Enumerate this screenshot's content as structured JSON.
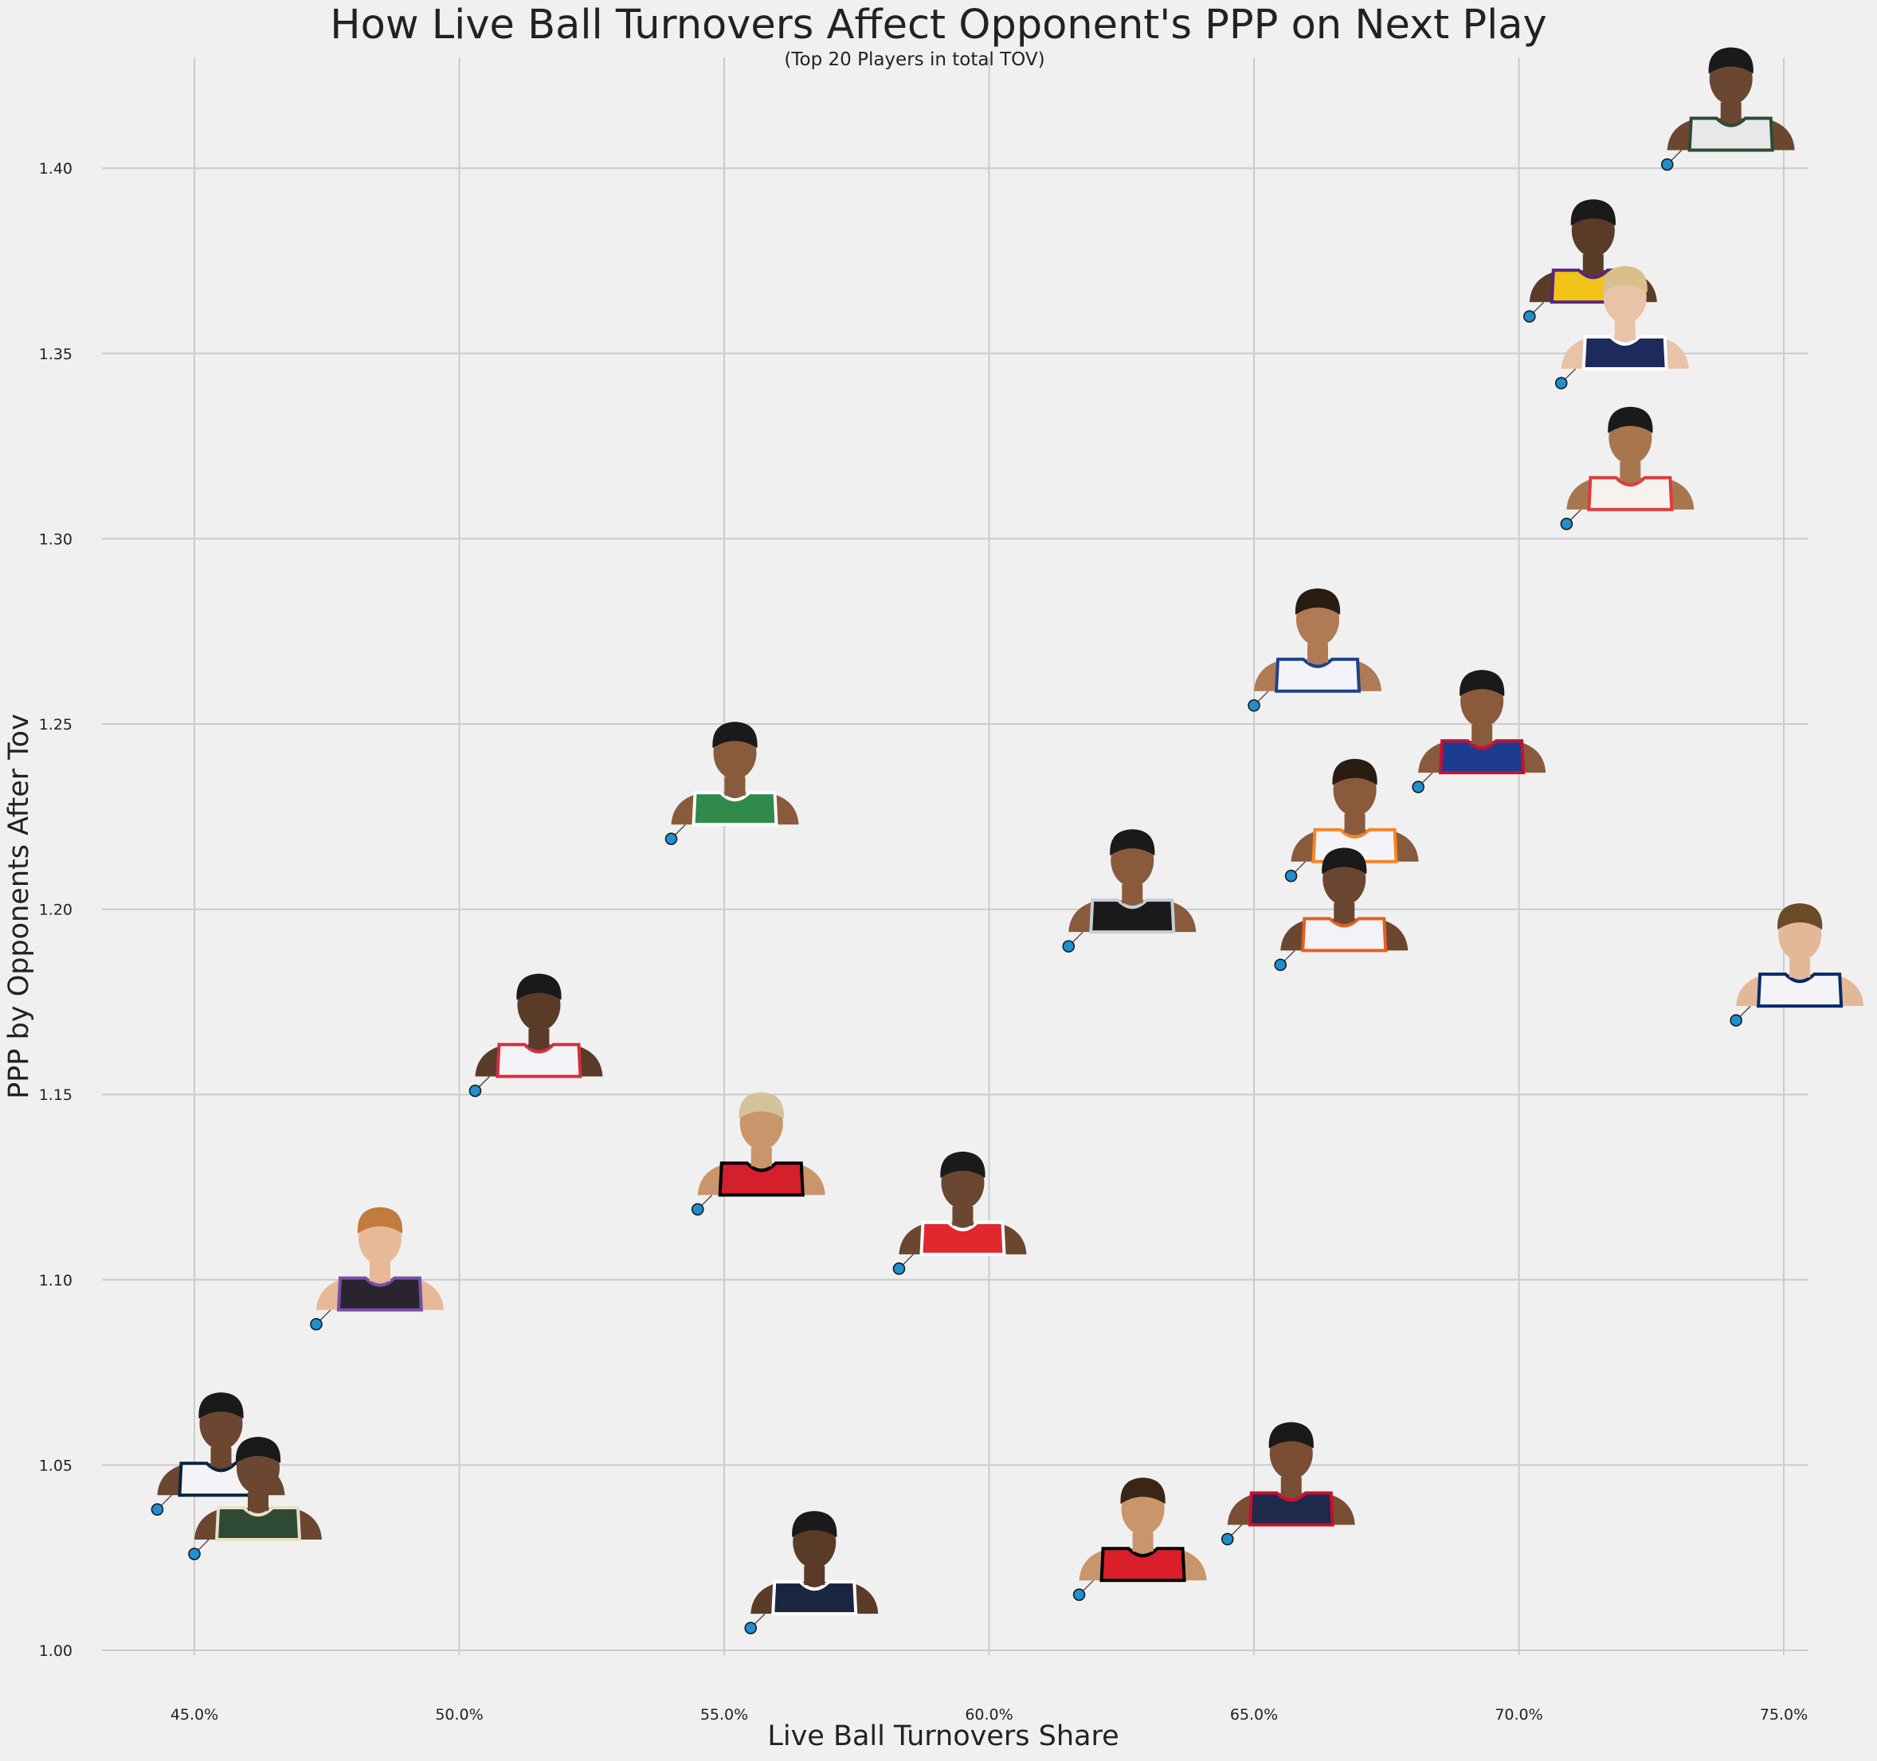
{
  "chart_data": {
    "type": "scatter",
    "title": "How Live Ball Turnovers Affect Opponent's PPP on Next Play",
    "subtitle": "(Top 20 Players in total TOV)",
    "xlabel": "Live Ball Turnovers Share",
    "ylabel": "PPP by Opponents After Tov",
    "xlim": [
      0.43,
      0.755
    ],
    "ylim": [
      0.988,
      1.42
    ],
    "xticks": [
      0.45,
      0.5,
      0.55,
      0.6,
      0.65,
      0.7,
      0.75
    ],
    "xtick_labels": [
      "45.0%",
      "50.0%",
      "55.0%",
      "60.0%",
      "65.0%",
      "70.0%",
      "75.0%"
    ],
    "yticks": [
      1.0,
      1.05,
      1.1,
      1.15,
      1.2,
      1.25,
      1.3,
      1.35,
      1.4
    ],
    "ytick_labels": [
      "1.00",
      "1.05",
      "1.10",
      "1.15",
      "1.20",
      "1.25",
      "1.30",
      "1.35",
      "1.40"
    ],
    "grid": true,
    "marker_color": "#1f8fcf",
    "points": [
      {
        "x": 0.728,
        "y": 1.401,
        "jersey": "#e8e8e8",
        "trim": "#2e4a35",
        "skin": "#6b4630",
        "hair": "#1a1a1a"
      },
      {
        "x": 0.702,
        "y": 1.36,
        "jersey": "#f2c418",
        "trim": "#552583",
        "skin": "#5a3b28",
        "hair": "#1a1a1a"
      },
      {
        "x": 0.708,
        "y": 1.342,
        "jersey": "#1d2a5c",
        "trim": "#ffffff",
        "skin": "#e9c3a8",
        "hair": "#d9c08a"
      },
      {
        "x": 0.709,
        "y": 1.304,
        "jersey": "#f7f2ee",
        "trim": "#e03a3e",
        "skin": "#a8764e",
        "hair": "#1a1a1a"
      },
      {
        "x": 0.65,
        "y": 1.255,
        "jersey": "#f4f4f8",
        "trim": "#1d428a",
        "skin": "#b07a55",
        "hair": "#2a1c12"
      },
      {
        "x": 0.681,
        "y": 1.233,
        "jersey": "#1d3c8f",
        "trim": "#c8102e",
        "skin": "#8a5a3c",
        "hair": "#1a1a1a"
      },
      {
        "x": 0.54,
        "y": 1.219,
        "jersey": "#2f8a4c",
        "trim": "#ffffff",
        "skin": "#8a5a3c",
        "hair": "#1a1a1a"
      },
      {
        "x": 0.657,
        "y": 1.209,
        "jersey": "#f4f4f8",
        "trim": "#f58426",
        "skin": "#8a5a3c",
        "hair": "#2a1c12"
      },
      {
        "x": 0.615,
        "y": 1.19,
        "jersey": "#1a1a1a",
        "trim": "#c4ced4",
        "skin": "#8a5a3c",
        "hair": "#1a1a1a"
      },
      {
        "x": 0.655,
        "y": 1.185,
        "jersey": "#f4f2f8",
        "trim": "#e56020",
        "skin": "#6b4630",
        "hair": "#1a1a1a"
      },
      {
        "x": 0.741,
        "y": 1.17,
        "jersey": "#f4f4f8",
        "trim": "#0b2a66",
        "skin": "#e2b899",
        "hair": "#6b4a2a"
      },
      {
        "x": 0.503,
        "y": 1.151,
        "jersey": "#f4f4f8",
        "trim": "#d03040",
        "skin": "#5a3b28",
        "hair": "#1a1a1a"
      },
      {
        "x": 0.545,
        "y": 1.119,
        "jersey": "#d41f2c",
        "trim": "#000000",
        "skin": "#c9956b",
        "hair": "#d4c29a"
      },
      {
        "x": 0.583,
        "y": 1.103,
        "jersey": "#e0282e",
        "trim": "#ffffff",
        "skin": "#6b4630",
        "hair": "#1a1a1a"
      },
      {
        "x": 0.473,
        "y": 1.088,
        "jersey": "#2a2430",
        "trim": "#7b4fa8",
        "skin": "#e8b998",
        "hair": "#c27a3e"
      },
      {
        "x": 0.443,
        "y": 1.038,
        "jersey": "#f4f4f8",
        "trim": "#0c2340",
        "skin": "#6b4630",
        "hair": "#1a1a1a"
      },
      {
        "x": 0.45,
        "y": 1.026,
        "jersey": "#2e4a35",
        "trim": "#e8e0c8",
        "skin": "#6b4630",
        "hair": "#1a1a1a"
      },
      {
        "x": 0.645,
        "y": 1.03,
        "jersey": "#1d2a4c",
        "trim": "#c8102e",
        "skin": "#7a4e34",
        "hair": "#1a1a1a"
      },
      {
        "x": 0.617,
        "y": 1.015,
        "jersey": "#d81f2a",
        "trim": "#000000",
        "skin": "#c9956b",
        "hair": "#3a2616"
      },
      {
        "x": 0.555,
        "y": 1.006,
        "jersey": "#1a2540",
        "trim": "#ffffff",
        "skin": "#5a3b28",
        "hair": "#1a1a1a"
      }
    ]
  }
}
